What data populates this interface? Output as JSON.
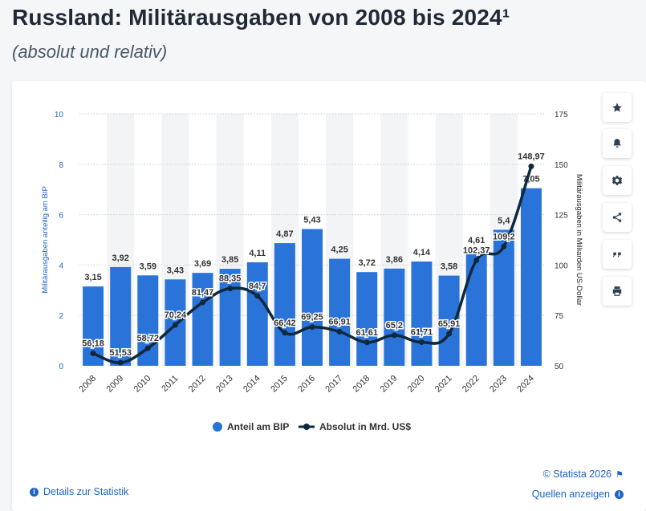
{
  "header": {
    "title": "Russland: Militärausgaben von 2008 bis 2024¹",
    "subtitle": "(absolut und relativ)"
  },
  "toolbar": {
    "buttons": [
      {
        "icon": "star-icon",
        "label": "Favorit"
      },
      {
        "icon": "bell-icon",
        "label": "Benachrichtigung"
      },
      {
        "icon": "gear-icon",
        "label": "Einstellungen"
      },
      {
        "icon": "share-icon",
        "label": "Teilen"
      },
      {
        "icon": "quote-icon",
        "label": "Zitieren"
      },
      {
        "icon": "print-icon",
        "label": "Drucken"
      }
    ]
  },
  "footer": {
    "details_label": "Details zur Statistik",
    "copyright_label": "© Statista 2026",
    "sources_label": "Quellen anzeigen"
  },
  "colors": {
    "bar": "#2a74d9",
    "line": "#10283b",
    "band": "#f3f4f6",
    "grid": "#c9ced3",
    "axis_text": "#1b63c6",
    "label_text": "#333333"
  },
  "chart_data": {
    "type": "bar",
    "categories": [
      "2008",
      "2009",
      "2010",
      "2011",
      "2012",
      "2013",
      "2014",
      "2015",
      "2016",
      "2017",
      "2018",
      "2019",
      "2020",
      "2021",
      "2022",
      "2023",
      "2024"
    ],
    "series": [
      {
        "name": "Anteil am BIP",
        "type": "bar",
        "axis": "left",
        "values": [
          3.15,
          3.92,
          3.59,
          3.43,
          3.69,
          3.85,
          4.11,
          4.87,
          5.43,
          4.25,
          3.72,
          3.86,
          4.14,
          3.58,
          4.61,
          5.4,
          7.05
        ],
        "value_labels": [
          "3,15",
          "3,92",
          "3,59",
          "3,43",
          "3,69",
          "3,85",
          "4,11",
          "4,87",
          "5,43",
          "4,25",
          "3,72",
          "3,86",
          "4,14",
          "3,58",
          "4,61",
          "5,4",
          "7,05"
        ]
      },
      {
        "name": "Absolut in Mrd. US$",
        "type": "line",
        "axis": "right",
        "values": [
          56.18,
          51.53,
          58.72,
          70.24,
          81.47,
          88.35,
          84.7,
          66.42,
          69.25,
          66.91,
          61.61,
          65.2,
          61.71,
          65.91,
          102.37,
          109.2,
          148.97
        ],
        "value_labels": [
          "56,18",
          "51,53",
          "58,72",
          "70,24",
          "81,47",
          "88,35",
          "84,7",
          "66,42",
          "69,25",
          "66,91",
          "61,61",
          "65,2",
          "61,71",
          "65,91",
          "102,37",
          "109,2",
          "148,97"
        ]
      }
    ],
    "ylabel_left": "Militärausgaben anteilig am BIP",
    "ylabel_right": "Militärausgaben in Milliarden US-Dollar",
    "ylim_left": [
      0,
      10
    ],
    "ylim_right": [
      50,
      175
    ],
    "yticks_left": [
      "0",
      "2",
      "4",
      "6",
      "8",
      "10"
    ],
    "yticks_right": [
      "50",
      "75",
      "100",
      "125",
      "150",
      "175"
    ],
    "legend": [
      "Anteil am BIP",
      "Absolut in Mrd. US$"
    ],
    "legend_position": "bottom",
    "grid": true
  }
}
